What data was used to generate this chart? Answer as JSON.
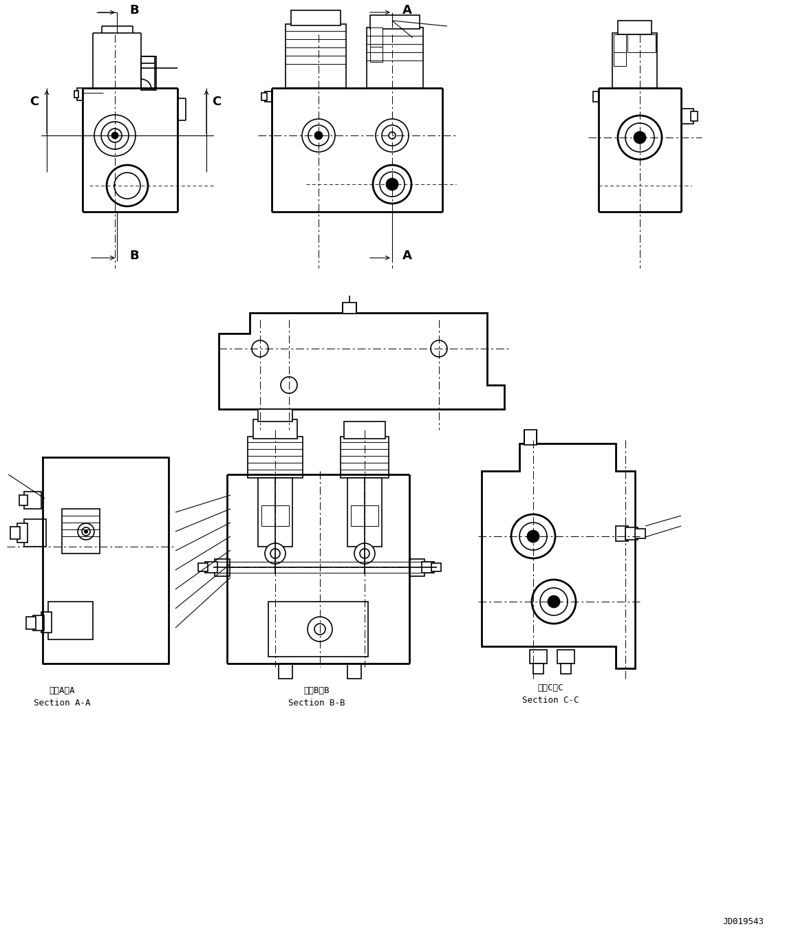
{
  "bg_color": "#ffffff",
  "line_color": "#000000",
  "title_id": "JD019543",
  "section_AA_jp": "断面A－A",
  "section_AA_en": "Section A-A",
  "section_BB_jp": "断面B－B",
  "section_BB_en": "Section B-B",
  "section_CC_jp": "断面C－C",
  "section_CC_en": "Section C-C",
  "dim_B_top": "B",
  "dim_B_bot": "B",
  "dim_C_left": "C",
  "dim_C_right": "C",
  "dim_A_top": "A",
  "dim_A_bot": "A",
  "lw_thick": 2.0,
  "lw_main": 1.2,
  "lw_thin": 0.7,
  "lw_dim": 0.8
}
